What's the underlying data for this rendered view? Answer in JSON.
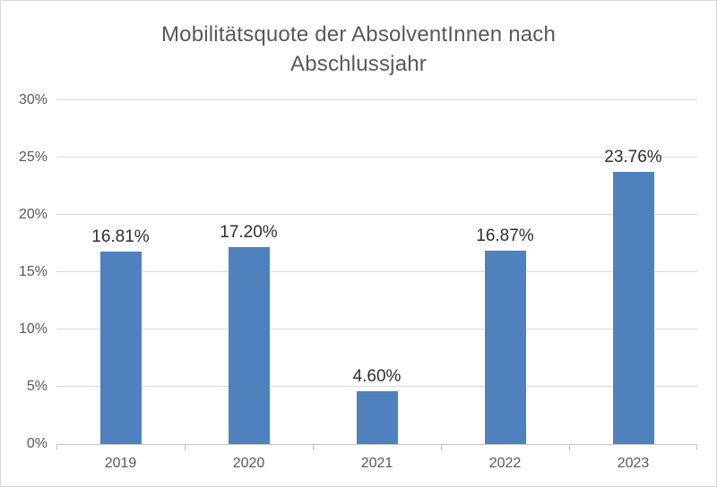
{
  "chart_data": {
    "type": "bar",
    "title": "Mobilitätsquote der AbsolventInnen nach Abschlussjahr",
    "title_lines": [
      "Mobilitätsquote der AbsolventInnen nach",
      "Abschlussjahr"
    ],
    "categories": [
      "2019",
      "2020",
      "2021",
      "2022",
      "2023"
    ],
    "values": [
      16.81,
      17.2,
      4.6,
      16.87,
      23.76
    ],
    "data_labels": [
      "16.81%",
      "17.20%",
      "4.60%",
      "16.87%",
      "23.76%"
    ],
    "xlabel": "",
    "ylabel": "",
    "ylim": [
      0,
      30
    ],
    "ytick_step": 5,
    "ytick_labels": [
      "0%",
      "5%",
      "10%",
      "15%",
      "20%",
      "25%",
      "30%"
    ],
    "grid": true,
    "legend_position": "none",
    "colors": {
      "bar_fill": "#4F81BD",
      "gridline": "#D9D9D9",
      "axis_line": "#C3C3C3",
      "title_text": "#595959",
      "tick_label_text": "#595959",
      "data_label_text": "#2E2E2E",
      "background": "#FFFFFF",
      "chart_border": "#D6D6D6"
    }
  }
}
